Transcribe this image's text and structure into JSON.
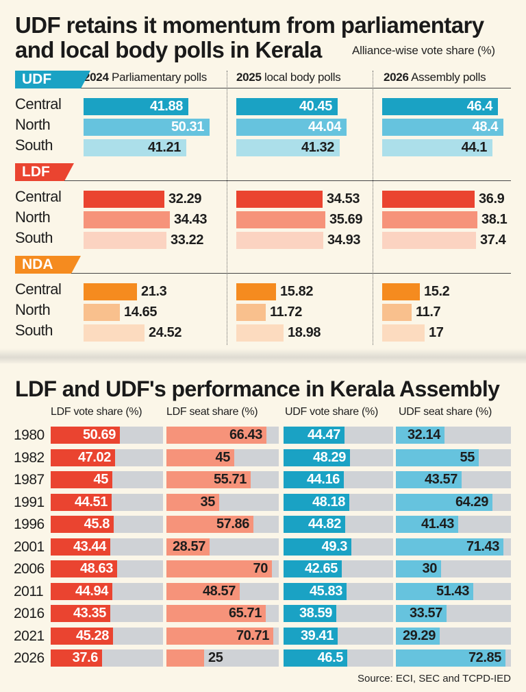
{
  "top_chart": {
    "title_line1": "UDF retains it momentum from parliamentary",
    "title_line2": "and local body polls in Kerala",
    "subtitle": "Alliance-wise vote share (%)",
    "columns": [
      {
        "year": "2024",
        "rest": " Parliamentary polls"
      },
      {
        "year": "2025",
        "rest": " local body polls"
      },
      {
        "year": "2026",
        "rest": " Assembly polls"
      }
    ],
    "regions": [
      "Central",
      "North",
      "South"
    ]
  },
  "bottom_chart": {
    "title": "LDF and UDF's performance in Kerala Assembly",
    "column_headers": [
      "LDF vote share (%)",
      "LDF seat share (%)",
      "UDF vote share (%)",
      "UDF seat share (%)"
    ]
  },
  "source": "Source: ECI, SEC and TCPD-IED",
  "colors": {
    "udf": [
      "#1aa2c4",
      "#66c3de",
      "#acdfea"
    ],
    "ldf": [
      "#ea4430",
      "#f6937a",
      "#fbd3c1"
    ],
    "nda": [
      "#f58b1f",
      "#f9c08d",
      "#fcdbbf"
    ],
    "ldf_vote": "#ea4430",
    "ldf_seat": "#f6937a",
    "udf_vote": "#1aa2c4",
    "udf_seat": "#66c3de",
    "track": "#cfd2d6"
  },
  "chart_data": [
    {
      "type": "bar",
      "title": "UDF retains it momentum from parliamentary and local body polls in Kerala",
      "subtitle": "Alliance-wise vote share (%)",
      "categories": [
        "Central",
        "North",
        "South"
      ],
      "panels": [
        "2024 Parliamentary polls",
        "2025 local body polls",
        "2026 Assembly polls"
      ],
      "series": [
        {
          "name": "UDF",
          "values": {
            "2024 Parliamentary polls": [
              41.88,
              50.31,
              41.21
            ],
            "2025 local body polls": [
              40.45,
              44.04,
              41.32
            ],
            "2026 Assembly polls": [
              46.4,
              48.4,
              44.1
            ]
          }
        },
        {
          "name": "LDF",
          "values": {
            "2024 Parliamentary polls": [
              32.29,
              34.43,
              33.22
            ],
            "2025 local body polls": [
              34.53,
              35.69,
              34.93
            ],
            "2026 Assembly polls": [
              36.9,
              38.1,
              37.4
            ]
          }
        },
        {
          "name": "NDA",
          "values": {
            "2024 Parliamentary polls": [
              21.3,
              14.65,
              24.52
            ],
            "2025 local body polls": [
              15.82,
              11.72,
              18.98
            ],
            "2026 Assembly polls": [
              15.2,
              11.7,
              17
            ]
          }
        }
      ]
    },
    {
      "type": "bar",
      "title": "LDF and UDF's performance in Kerala Assembly",
      "categories": [
        "1980",
        "1982",
        "1987",
        "1991",
        "1996",
        "2001",
        "2006",
        "2011",
        "2016",
        "2021",
        "2026"
      ],
      "series": [
        {
          "name": "LDF vote share (%)",
          "values": [
            50.69,
            47.02,
            45,
            44.51,
            45.8,
            43.44,
            48.63,
            44.94,
            43.35,
            45.28,
            37.6
          ]
        },
        {
          "name": "LDF seat share (%)",
          "values": [
            66.43,
            45,
            55.71,
            35,
            57.86,
            28.57,
            70,
            48.57,
            65.71,
            70.71,
            25
          ]
        },
        {
          "name": "UDF vote share (%)",
          "values": [
            44.47,
            48.29,
            44.16,
            48.18,
            44.82,
            49.3,
            42.65,
            45.83,
            38.59,
            39.41,
            46.5
          ]
        },
        {
          "name": "UDF seat share (%)",
          "values": [
            32.14,
            55,
            43.57,
            64.29,
            41.43,
            71.43,
            30,
            51.43,
            33.57,
            29.29,
            72.85
          ]
        }
      ]
    }
  ]
}
